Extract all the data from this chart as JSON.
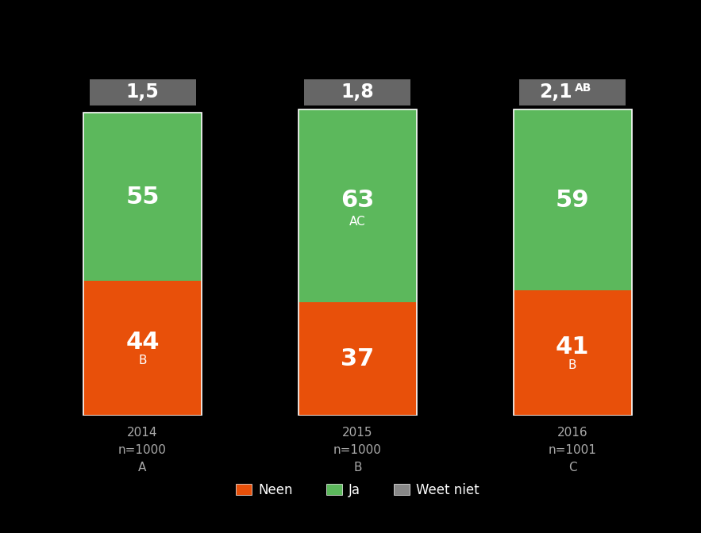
{
  "categories": [
    "2014\nn=1000\nA",
    "2015\nn=1000\nB",
    "2016\nn=1001\nC"
  ],
  "neen_values": [
    44,
    37,
    41
  ],
  "ja_values": [
    55,
    63,
    59
  ],
  "neen_color": "#E8500A",
  "ja_color": "#5CB85C",
  "bg_color": "#000000",
  "bar_width": 0.55,
  "neen_sublabels": [
    "B",
    "",
    "B"
  ],
  "ja_sublabels": [
    "",
    "AC",
    ""
  ],
  "legend_neen": "Neen",
  "legend_ja": "Ja",
  "legend_weet": "Weet niet",
  "weet_color": "#888888",
  "avg_box_color": "#666666",
  "avg_text_color": "#ffffff",
  "avg_labels": [
    "1,5",
    "1,8",
    "2,1"
  ],
  "avg_superscripts": [
    "",
    "",
    "AB"
  ],
  "label_fontsize": 22,
  "sublabel_fontsize": 11,
  "avg_fontsize": 17,
  "avg_super_fontsize": 10,
  "xlabel_fontsize": 11,
  "legend_fontsize": 12,
  "tick_label_color": "#aaaaaa"
}
